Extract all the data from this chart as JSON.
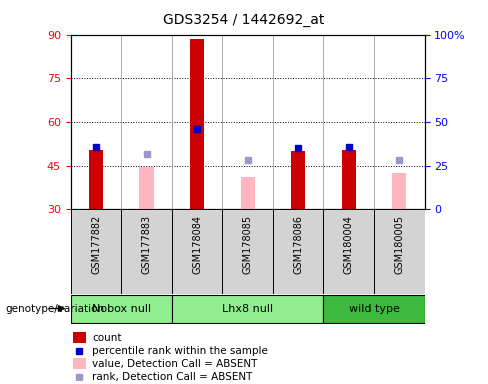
{
  "title": "GDS3254 / 1442692_at",
  "samples": [
    "GSM177882",
    "GSM177883",
    "GSM178084",
    "GSM178085",
    "GSM178086",
    "GSM180004",
    "GSM180005"
  ],
  "ylim_left": [
    30,
    90
  ],
  "ylim_right": [
    0,
    100
  ],
  "yticks_left": [
    30,
    45,
    60,
    75,
    90
  ],
  "yticks_right": [
    0,
    25,
    50,
    75,
    100
  ],
  "yticklabels_right": [
    "0",
    "25",
    "50",
    "75",
    "100%"
  ],
  "red_bars": [
    50.5,
    0,
    88.5,
    0,
    50.0,
    50.5,
    0
  ],
  "pink_bars": [
    0,
    44.5,
    0,
    41.0,
    0,
    0,
    42.5
  ],
  "blue_squares_y": [
    51.5,
    0,
    57.5,
    0,
    51.0,
    51.5,
    0
  ],
  "lightblue_squares_y": [
    0,
    49.0,
    0,
    47.0,
    0,
    0,
    47.0
  ],
  "bar_bottom": 30,
  "red_color": "#cc0000",
  "pink_color": "#ffb6c1",
  "blue_color": "#0000cc",
  "lightblue_color": "#9999cc",
  "group_labels": [
    "Nobox null",
    "Lhx8 null",
    "wild type"
  ],
  "group_ranges": [
    [
      0,
      1
    ],
    [
      2,
      4
    ],
    [
      5,
      6
    ]
  ],
  "group_colors": [
    "#90ee90",
    "#90ee90",
    "#3dba3d"
  ],
  "sample_bg_color": "#d3d3d3",
  "legend_items": [
    {
      "color": "#cc0000",
      "label": "count",
      "type": "rect"
    },
    {
      "color": "#0000cc",
      "label": "percentile rank within the sample",
      "type": "square"
    },
    {
      "color": "#ffb6c1",
      "label": "value, Detection Call = ABSENT",
      "type": "rect"
    },
    {
      "color": "#9999cc",
      "label": "rank, Detection Call = ABSENT",
      "type": "square"
    }
  ]
}
